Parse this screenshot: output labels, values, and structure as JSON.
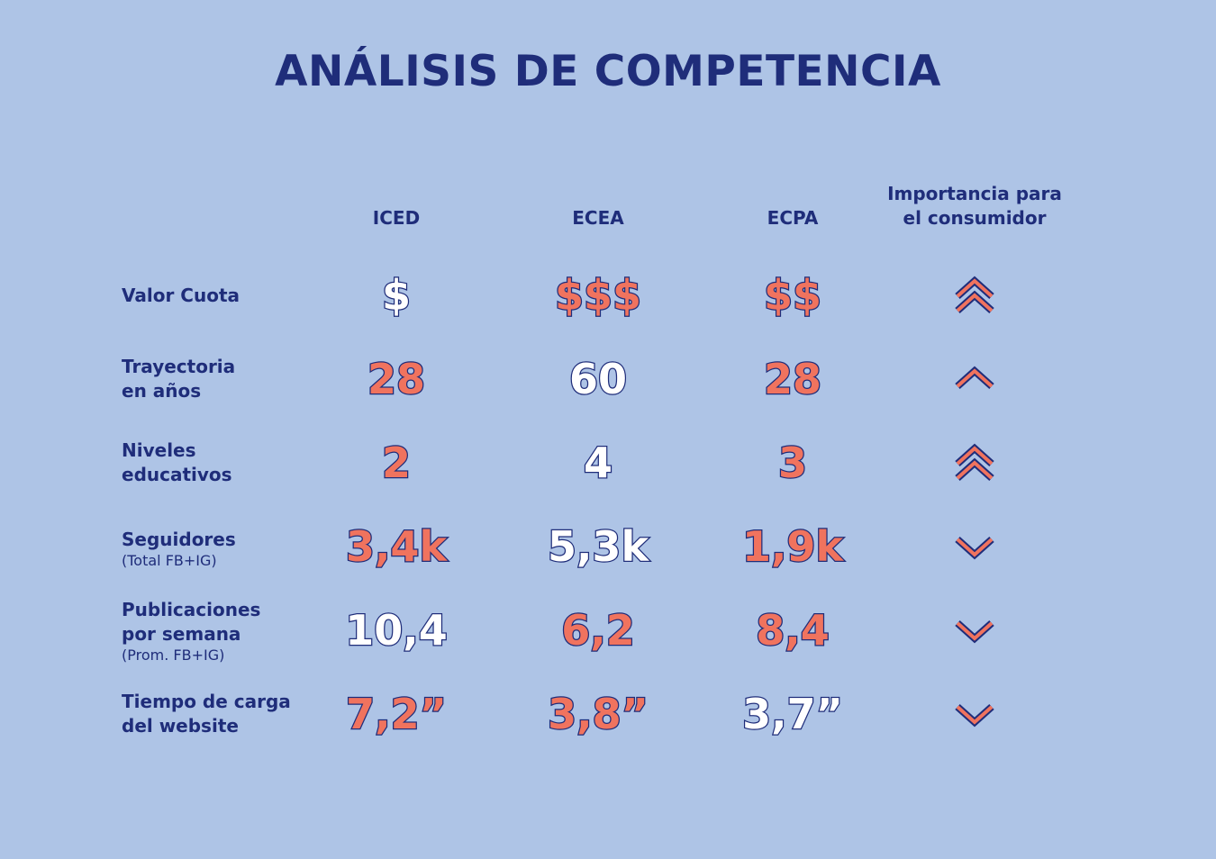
{
  "title": "ANÁLISIS DE COMPETENCIA",
  "columns": [
    "ICED",
    "ECEA",
    "ECPA"
  ],
  "importance_header": [
    "Importancia para",
    "el consumidor"
  ],
  "colors": {
    "accent": "#f0735e",
    "dark": "#1f2d7a",
    "light": "#ffffff",
    "background": "#aec4e6"
  },
  "rows": [
    {
      "label": "Valor Cuota",
      "sub": "",
      "values": [
        {
          "text": "$",
          "color": "white"
        },
        {
          "text": "$$$",
          "color": "orange"
        },
        {
          "text": "$$",
          "color": "orange"
        }
      ],
      "importance": "double-chevron-up-icon"
    },
    {
      "label": "Trayectoria\nen años",
      "sub": "",
      "values": [
        {
          "text": "28",
          "color": "orange"
        },
        {
          "text": "60",
          "color": "white"
        },
        {
          "text": "28",
          "color": "orange"
        }
      ],
      "importance": "chevron-up-icon"
    },
    {
      "label": "Niveles\neducativos",
      "sub": "",
      "values": [
        {
          "text": "2",
          "color": "orange"
        },
        {
          "text": "4",
          "color": "white"
        },
        {
          "text": "3",
          "color": "orange"
        }
      ],
      "importance": "double-chevron-up-icon"
    },
    {
      "label": "Seguidores",
      "sub": "(Total FB+IG)",
      "values": [
        {
          "text": "3,4k",
          "color": "orange"
        },
        {
          "text": "5,3k",
          "color": "white"
        },
        {
          "text": "1,9k",
          "color": "orange"
        }
      ],
      "importance": "chevron-down-icon"
    },
    {
      "label": "Publicaciones\npor semana",
      "sub": "(Prom. FB+IG)",
      "values": [
        {
          "text": "10,4",
          "color": "white"
        },
        {
          "text": "6,2",
          "color": "orange"
        },
        {
          "text": "8,4",
          "color": "orange"
        }
      ],
      "importance": "chevron-down-icon"
    },
    {
      "label": "Tiempo de carga\ndel website",
      "sub": "",
      "values": [
        {
          "text": "7,2”",
          "color": "orange"
        },
        {
          "text": "3,8”",
          "color": "orange"
        },
        {
          "text": "3,7”",
          "color": "white"
        }
      ],
      "importance": "chevron-down-icon"
    }
  ]
}
